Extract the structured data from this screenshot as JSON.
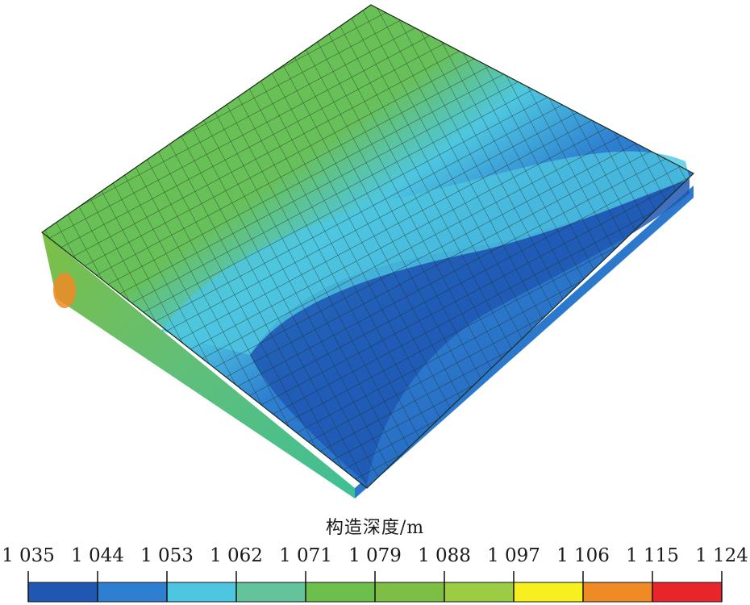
{
  "figure": {
    "colorbar": {
      "title": "构造深度/m",
      "ticks": [
        "1 035",
        "1 044",
        "1 053",
        "1 062",
        "1 071",
        "1 079",
        "1 088",
        "1 097",
        "1 106",
        "1 115",
        "1 124"
      ],
      "colors": [
        "#1f57b3",
        "#2e7fd1",
        "#4ec6e0",
        "#63c39a",
        "#6cbf4a",
        "#7dbf45",
        "#9ccc44",
        "#f5f01e",
        "#f08a24",
        "#e8262a"
      ]
    },
    "depth_range": [
      1035,
      1124
    ]
  }
}
